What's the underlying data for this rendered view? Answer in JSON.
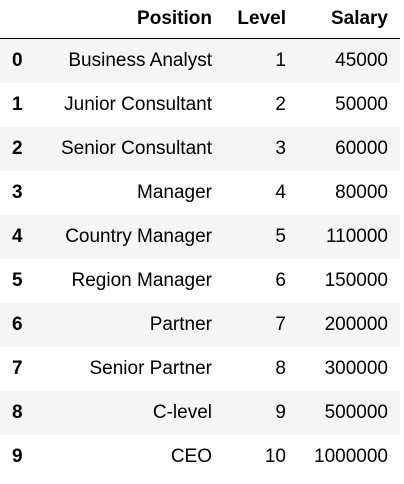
{
  "table": {
    "columns": {
      "index": "",
      "position": "Position",
      "level": "Level",
      "salary": "Salary"
    },
    "rows": [
      {
        "index": "0",
        "position": "Business Analyst",
        "level": "1",
        "salary": "45000"
      },
      {
        "index": "1",
        "position": "Junior Consultant",
        "level": "2",
        "salary": "50000"
      },
      {
        "index": "2",
        "position": "Senior Consultant",
        "level": "3",
        "salary": "60000"
      },
      {
        "index": "3",
        "position": "Manager",
        "level": "4",
        "salary": "80000"
      },
      {
        "index": "4",
        "position": "Country Manager",
        "level": "5",
        "salary": "110000"
      },
      {
        "index": "5",
        "position": "Region Manager",
        "level": "6",
        "salary": "150000"
      },
      {
        "index": "6",
        "position": "Partner",
        "level": "7",
        "salary": "200000"
      },
      {
        "index": "7",
        "position": "Senior Partner",
        "level": "8",
        "salary": "300000"
      },
      {
        "index": "8",
        "position": "C-level",
        "level": "9",
        "salary": "500000"
      },
      {
        "index": "9",
        "position": "CEO",
        "level": "10",
        "salary": "1000000"
      }
    ]
  }
}
